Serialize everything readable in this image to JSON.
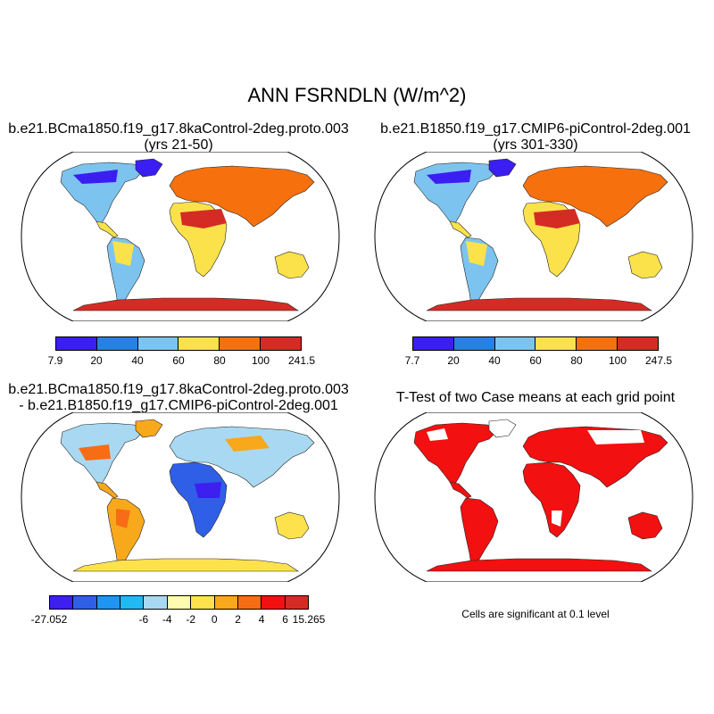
{
  "title": "ANN FSRNDLN (W/m^2)",
  "panels": [
    {
      "id": "case",
      "title_line1": "b.e21.BCma1850.f19_g17.8kaControl-2deg.proto.003",
      "title_line2": "(yrs 21-50)",
      "colorbar": {
        "colors": [
          "#3b1ef2",
          "#2a7fe6",
          "#7cc4ef",
          "#fbe24a",
          "#f6710e",
          "#d42c25"
        ],
        "labels": [
          "7.9",
          "20",
          "40",
          "60",
          "80",
          "100",
          "241.5"
        ]
      }
    },
    {
      "id": "control",
      "title_line1": "b.e21.B1850.f19_g17.CMIP6-piControl-2deg.001",
      "title_line2": "(yrs 301-330)",
      "colorbar": {
        "colors": [
          "#3b1ef2",
          "#2a7fe6",
          "#7cc4ef",
          "#fbe24a",
          "#f6710e",
          "#d42c25"
        ],
        "labels": [
          "7.7",
          "20",
          "40",
          "60",
          "80",
          "100",
          "247.5"
        ]
      }
    },
    {
      "id": "difference",
      "title_line1": "b.e21.BCma1850.f19_g17.8kaControl-2deg.proto.003",
      "title_line2": "- b.e21.B1850.f19_g17.CMIP6-piControl-2deg.001",
      "colorbar": {
        "colors": [
          "#3d1ff0",
          "#2f5fe6",
          "#1f95ef",
          "#22b9f2",
          "#a9d9f2",
          "#fdfbb0",
          "#fde24e",
          "#f8a81b",
          "#f66d16",
          "#f21010",
          "#d42c25"
        ],
        "labels": [
          "-27.052",
          "-6",
          "-4",
          "-2",
          "0",
          "2",
          "4",
          "6",
          "15.265"
        ]
      }
    },
    {
      "id": "ttest",
      "title_line1": "T-Test of two Case means at each grid point",
      "note": "Cells are significant at 0.1 level"
    }
  ]
}
